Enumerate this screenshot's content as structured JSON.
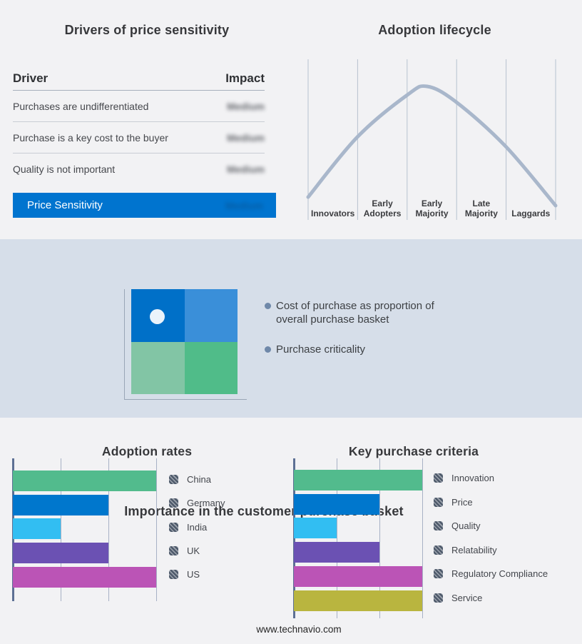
{
  "drivers_table": {
    "title": "Drivers of price sensitivity",
    "col_driver": "Driver",
    "col_impact": "Impact",
    "rows": [
      {
        "driver": "Purchases are undifferentiated",
        "impact": "Medium",
        "impact_blurred": true
      },
      {
        "driver": "Purchase is a key cost to the buyer",
        "impact": "Medium",
        "impact_blurred": true
      },
      {
        "driver": "Quality is not important",
        "impact": "Medium",
        "impact_blurred": true
      }
    ],
    "highlight_row": {
      "label": "Price Sensitivity",
      "impact": "Medium",
      "impact_blurred": true
    },
    "highlight_color": "#0074cf"
  },
  "basket": {
    "title": "Importance in the customer purchase basket",
    "bullets": [
      "Cost of purchase as proportion of overall purchase basket",
      "Purchase criticality"
    ],
    "band_color": "#d6dee9",
    "bullet_color": "#6f88a9",
    "quadrant_colors": {
      "top_left": "#0070c8",
      "top_right": "#3a8fd9",
      "bottom_left": "#82c5a5",
      "bottom_right": "#50bc89"
    },
    "marker": "white dot in top-left quadrant"
  },
  "footer": {
    "url": "www.technavio.com"
  },
  "chart_data": [
    {
      "id": "adoption_lifecycle",
      "type": "line",
      "title": "Adoption lifecycle",
      "categories": [
        "Innovators",
        "Early Adopters",
        "Early Majority",
        "Late Majority",
        "Laggards"
      ],
      "curve_shape": "bell curve peaking over Early Majority",
      "curve_points_norm": [
        [
          0.0,
          0.858
        ],
        [
          0.199,
          0.484
        ],
        [
          0.401,
          0.222
        ],
        [
          0.481,
          0.169
        ],
        [
          0.599,
          0.267
        ],
        [
          0.798,
          0.542
        ],
        [
          1.0,
          0.911
        ]
      ],
      "curve_color": "#a9b7cb",
      "gridline_color": "#b7c1cf",
      "grid": true,
      "axis_values_shown": false
    },
    {
      "id": "adoption_rates",
      "type": "bar",
      "title": "Adoption rates",
      "orientation": "horizontal",
      "categories": [
        "China",
        "Germany",
        "India",
        "UK",
        "US"
      ],
      "values": [
        3,
        2,
        1,
        2,
        3
      ],
      "xlim": [
        0,
        3
      ],
      "x_unit": "relative gridline units (no numeric labels shown)",
      "colors": [
        "#52bb8d",
        "#0077cd",
        "#32bef2",
        "#6b51b3",
        "#bb54b6"
      ],
      "legend_position": "right",
      "grid": true
    },
    {
      "id": "key_purchase_criteria",
      "type": "bar",
      "title": "Key purchase criteria",
      "orientation": "horizontal",
      "categories": [
        "Innovation",
        "Price",
        "Quality",
        "Relatability",
        "Regulatory Compliance",
        "Service"
      ],
      "values": [
        3,
        2,
        1,
        2,
        3,
        3
      ],
      "xlim": [
        0,
        3
      ],
      "x_unit": "relative gridline units (no numeric labels shown)",
      "colors": [
        "#52bb8d",
        "#0077cd",
        "#32bef2",
        "#6b51b3",
        "#bb54b6",
        "#b9b53f"
      ],
      "legend_position": "right",
      "grid": true
    }
  ]
}
